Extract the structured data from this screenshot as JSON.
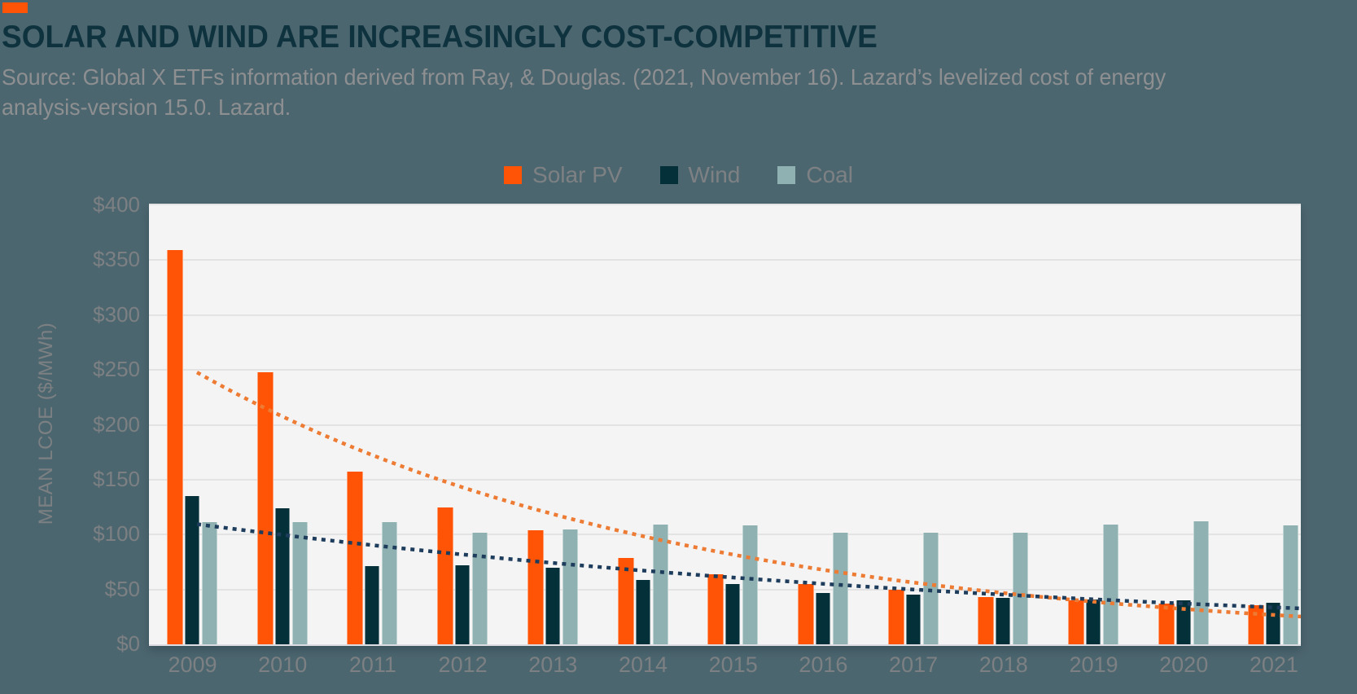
{
  "header": {
    "accent_color": "#FF5405",
    "title": "SOLAR AND WIND ARE INCREASINGLY COST-COMPETITIVE",
    "source_line1": "Source: Global X ETFs information derived from Ray, & Douglas. (2021, November 16). Lazard’s levelized cost of energy",
    "source_line2": "analysis-version 15.0. Lazard."
  },
  "colors": {
    "background": "#4C6670",
    "plot_background": "#F4F4F4",
    "gridline": "#E3E3E4",
    "title_text": "#0E333E",
    "muted_text": "#8E8F91",
    "axis_text": "#7C8082",
    "solar": "#FF5405",
    "wind": "#04303A",
    "coal": "#8FB1B1",
    "solar_trend": "#ED7B33",
    "wind_trend": "#1E3D5C"
  },
  "chart_data": {
    "type": "bar",
    "title": "SOLAR AND WIND ARE INCREASINGLY COST-COMPETITIVE",
    "xlabel": "",
    "ylabel": "MEAN LCOE ($/MWh)",
    "ylim": [
      0,
      400
    ],
    "yticks": [
      0,
      50,
      100,
      150,
      200,
      250,
      300,
      350,
      400
    ],
    "ytick_labels": [
      "$0",
      "$50",
      "$100",
      "$150",
      "$200",
      "$250",
      "$300",
      "$350",
      "$400"
    ],
    "categories": [
      "2009",
      "2010",
      "2011",
      "2012",
      "2013",
      "2014",
      "2015",
      "2016",
      "2017",
      "2018",
      "2019",
      "2020",
      "2021"
    ],
    "series": [
      {
        "name": "Solar PV",
        "color": "#FF5405",
        "values": [
          359,
          248,
          157,
          125,
          104,
          79,
          64,
          55,
          50,
          43,
          40,
          37,
          36
        ]
      },
      {
        "name": "Wind",
        "color": "#04303A",
        "values": [
          135,
          124,
          71,
          72,
          70,
          59,
          55,
          47,
          45,
          42,
          41,
          40,
          38
        ]
      },
      {
        "name": "Coal",
        "color": "#8FB1B1",
        "values": [
          111,
          111,
          111,
          102,
          105,
          109,
          108,
          102,
          102,
          102,
          109,
          112,
          108
        ]
      }
    ],
    "trendlines": [
      {
        "name": "Expon. (Solar PV)",
        "type": "exponential",
        "value_at_2009": 250,
        "annual_ratio": 0.83,
        "color": "#ED7B33",
        "dashed": true
      },
      {
        "name": "Expon. (Wind)",
        "type": "exponential",
        "value_at_2009": 110,
        "annual_ratio": 0.906,
        "color": "#1E3D5C",
        "dashed": true
      }
    ],
    "legend_entries": [
      "Solar PV",
      "Wind",
      "Coal"
    ],
    "legend_position": "top-center",
    "grid": "horizontal"
  }
}
